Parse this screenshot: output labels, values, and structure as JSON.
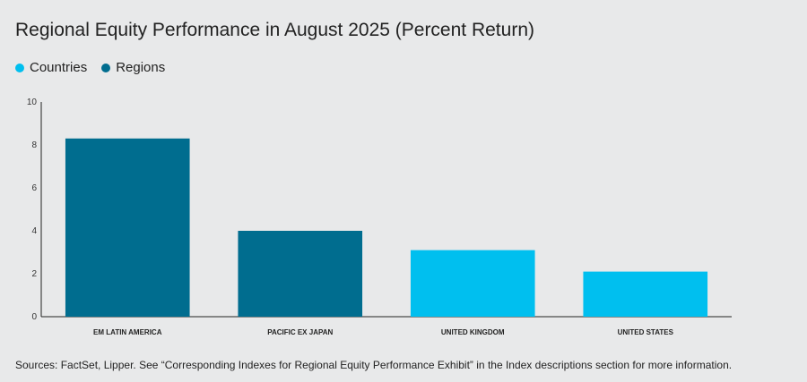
{
  "title": "Regional Equity Performance in August 2025 (Percent Return)",
  "legend": [
    {
      "label": "Countries",
      "color": "#00bfef"
    },
    {
      "label": "Regions",
      "color": "#006d8f"
    }
  ],
  "source": "Sources: FactSet, Lipper. See “Corresponding Indexes for Regional Equity Performance Exhibit” in the Index descriptions section for more information.",
  "chart_data": {
    "type": "bar",
    "title": "Regional Equity Performance in August 2025 (Percent Return)",
    "categories": [
      "EM LATIN AMERICA",
      "PACIFIC EX JAPAN",
      "UNITED KINGDOM",
      "UNITED STATES"
    ],
    "values": [
      8.3,
      4.0,
      3.1,
      2.1
    ],
    "groups": [
      "Regions",
      "Regions",
      "Countries",
      "Countries"
    ],
    "colors": [
      "#006d8f",
      "#006d8f",
      "#00bfef",
      "#00bfef"
    ],
    "ylim": [
      0,
      10
    ],
    "yticks": [
      0,
      2,
      4,
      6,
      8,
      10
    ],
    "xlabel": "",
    "ylabel": "",
    "grid": false,
    "legend_position": "top-left"
  }
}
